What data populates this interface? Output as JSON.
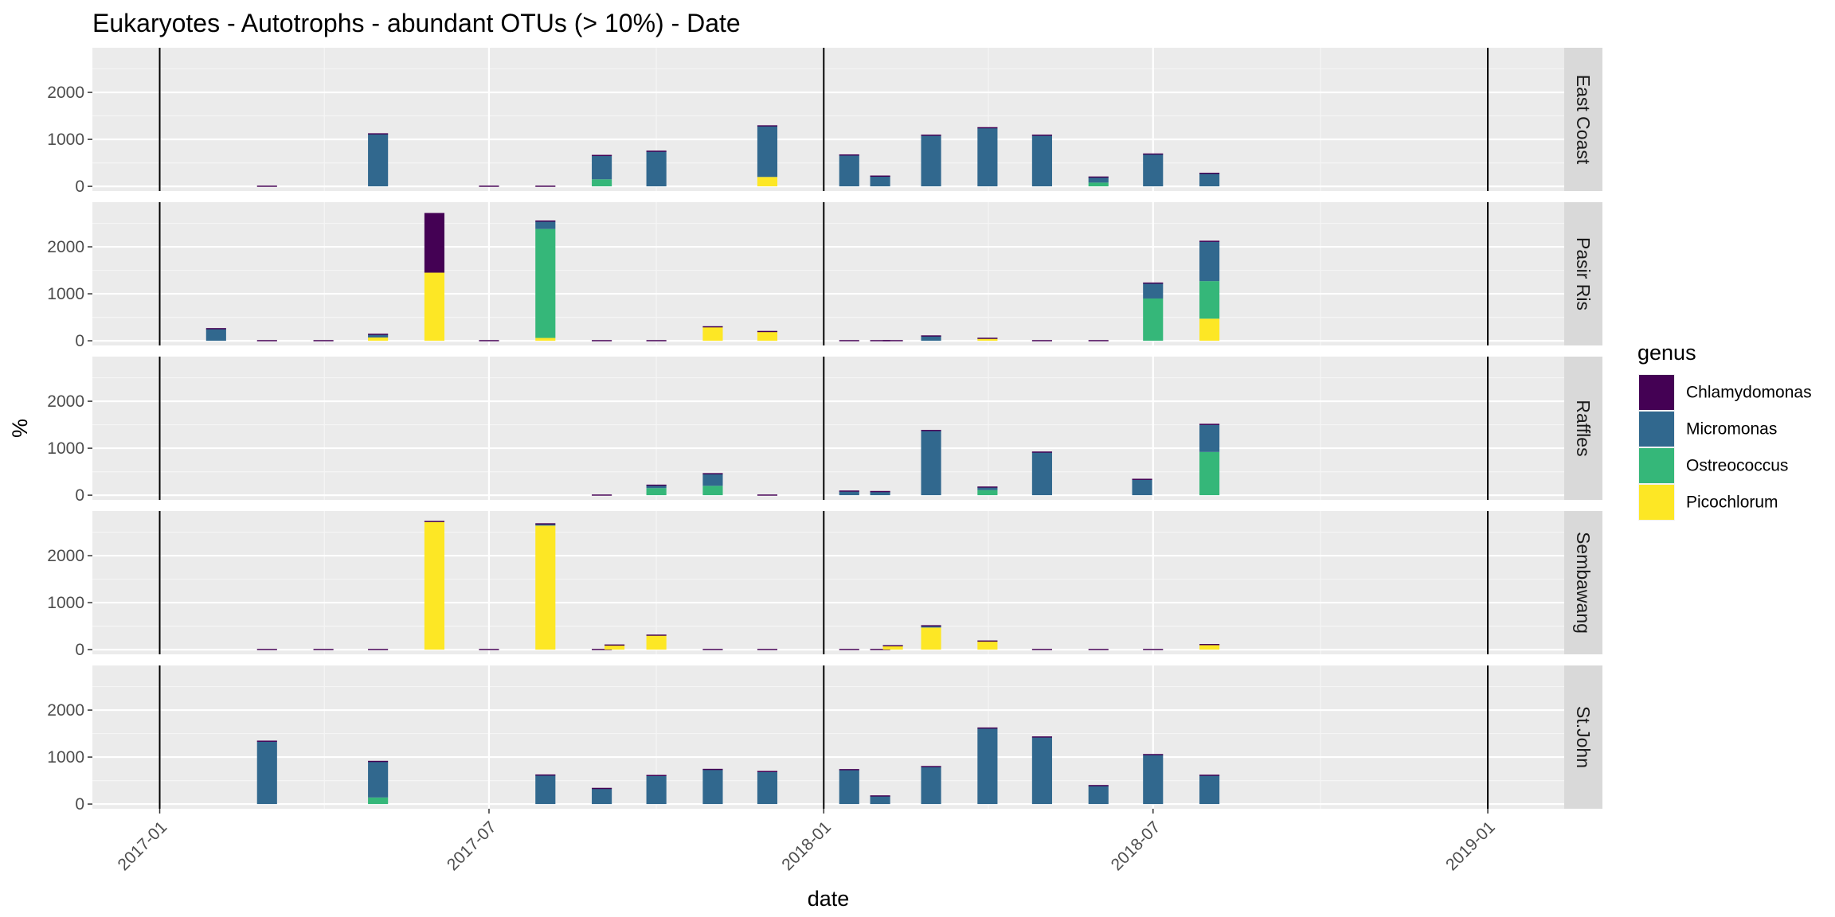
{
  "chart_data": {
    "type": "bar",
    "stacked": true,
    "title": "Eukaryotes - Autotrophs - abundant OTUs (> 10%) - Date",
    "xlabel": "date",
    "ylabel": "%",
    "ylim": [
      -100,
      2950
    ],
    "yticks": [
      0,
      1000,
      2000
    ],
    "xlim": [
      "2016-11-25",
      "2019-02-12"
    ],
    "xticks": [
      "2017-01",
      "2017-07",
      "2018-01",
      "2018-07",
      "2019-01"
    ],
    "vlines": [
      "2017-01-01",
      "2018-01-01",
      "2019-01-01"
    ],
    "grid": true,
    "legend": {
      "title": "genus",
      "position": "right",
      "items": [
        {
          "name": "Chlamydomonas",
          "color": "#440154"
        },
        {
          "name": "Micromonas",
          "color": "#31688E"
        },
        {
          "name": "Ostreococcus",
          "color": "#35B779"
        },
        {
          "name": "Picochlorum",
          "color": "#FDE725"
        }
      ]
    },
    "panels": [
      {
        "name": "East Coast",
        "bars": [
          {
            "date": "2017-03-01",
            "values": [
              15,
              0,
              0,
              0
            ]
          },
          {
            "date": "2017-05-01",
            "values": [
              20,
              1110,
              0,
              0
            ]
          },
          {
            "date": "2017-07-01",
            "values": [
              15,
              0,
              0,
              0
            ]
          },
          {
            "date": "2017-08-01",
            "values": [
              15,
              0,
              0,
              0
            ]
          },
          {
            "date": "2017-09-01",
            "values": [
              20,
              500,
              150,
              0
            ]
          },
          {
            "date": "2017-10-01",
            "values": [
              15,
              745,
              0,
              0
            ]
          },
          {
            "date": "2017-12-01",
            "values": [
              20,
              1080,
              0,
              200
            ]
          },
          {
            "date": "2018-01-15",
            "values": [
              20,
              660,
              0,
              0
            ]
          },
          {
            "date": "2018-02-01",
            "values": [
              15,
              215,
              0,
              0
            ]
          },
          {
            "date": "2018-03-01",
            "values": [
              20,
              1080,
              0,
              0
            ]
          },
          {
            "date": "2018-04-01",
            "values": [
              20,
              1240,
              0,
              0
            ]
          },
          {
            "date": "2018-05-01",
            "values": [
              20,
              1080,
              0,
              0
            ]
          },
          {
            "date": "2018-06-01",
            "values": [
              15,
              115,
              80,
              0
            ]
          },
          {
            "date": "2018-07-01",
            "values": [
              20,
              680,
              0,
              0
            ]
          },
          {
            "date": "2018-08-01",
            "values": [
              15,
              275,
              0,
              0
            ]
          }
        ]
      },
      {
        "name": "Pasir Ris",
        "bars": [
          {
            "date": "2017-02-01",
            "values": [
              15,
              255,
              0,
              0
            ]
          },
          {
            "date": "2017-03-01",
            "values": [
              15,
              0,
              0,
              0
            ]
          },
          {
            "date": "2017-04-01",
            "values": [
              15,
              0,
              0,
              0
            ]
          },
          {
            "date": "2017-05-01",
            "values": [
              20,
              60,
              0,
              70
            ]
          },
          {
            "date": "2017-06-01",
            "values": [
              1270,
              0,
              0,
              1450
            ]
          },
          {
            "date": "2017-07-01",
            "values": [
              15,
              0,
              0,
              0
            ]
          },
          {
            "date": "2017-08-01",
            "values": [
              20,
              160,
              2320,
              60
            ]
          },
          {
            "date": "2017-09-01",
            "values": [
              15,
              0,
              0,
              0
            ]
          },
          {
            "date": "2017-10-01",
            "values": [
              15,
              0,
              0,
              0
            ]
          },
          {
            "date": "2017-11-01",
            "values": [
              20,
              0,
              0,
              290
            ]
          },
          {
            "date": "2017-12-01",
            "values": [
              20,
              0,
              0,
              190
            ]
          },
          {
            "date": "2018-01-15",
            "values": [
              15,
              0,
              0,
              0
            ]
          },
          {
            "date": "2018-02-01",
            "values": [
              15,
              0,
              0,
              0
            ]
          },
          {
            "date": "2018-02-08",
            "values": [
              15,
              0,
              0,
              0
            ]
          },
          {
            "date": "2018-03-01",
            "values": [
              15,
              100,
              0,
              0
            ]
          },
          {
            "date": "2018-04-01",
            "values": [
              15,
              0,
              0,
              50
            ]
          },
          {
            "date": "2018-05-01",
            "values": [
              15,
              0,
              0,
              0
            ]
          },
          {
            "date": "2018-06-01",
            "values": [
              15,
              0,
              0,
              0
            ]
          },
          {
            "date": "2018-07-01",
            "values": [
              20,
              320,
              900,
              0
            ]
          },
          {
            "date": "2018-08-01",
            "values": [
              20,
              840,
              800,
              470
            ]
          }
        ]
      },
      {
        "name": "Raffles",
        "bars": [
          {
            "date": "2017-09-01",
            "values": [
              15,
              0,
              0,
              0
            ]
          },
          {
            "date": "2017-10-01",
            "values": [
              15,
              60,
              150,
              0
            ]
          },
          {
            "date": "2017-11-01",
            "values": [
              20,
              250,
              200,
              0
            ]
          },
          {
            "date": "2017-12-01",
            "values": [
              15,
              0,
              0,
              0
            ]
          },
          {
            "date": "2018-01-15",
            "values": [
              15,
              85,
              0,
              0
            ]
          },
          {
            "date": "2018-02-01",
            "values": [
              15,
              75,
              0,
              0
            ]
          },
          {
            "date": "2018-03-01",
            "values": [
              20,
              1370,
              0,
              0
            ]
          },
          {
            "date": "2018-04-01",
            "values": [
              15,
              60,
              110,
              0
            ]
          },
          {
            "date": "2018-05-01",
            "values": [
              15,
              915,
              0,
              0
            ]
          },
          {
            "date": "2018-06-25",
            "values": [
              15,
              335,
              0,
              0
            ]
          },
          {
            "date": "2018-08-01",
            "values": [
              20,
              580,
              920,
              0
            ]
          }
        ]
      },
      {
        "name": "Sembawang",
        "bars": [
          {
            "date": "2017-03-01",
            "values": [
              15,
              0,
              0,
              0
            ]
          },
          {
            "date": "2017-04-01",
            "values": [
              15,
              0,
              0,
              0
            ]
          },
          {
            "date": "2017-05-01",
            "values": [
              15,
              0,
              0,
              0
            ]
          },
          {
            "date": "2017-06-01",
            "values": [
              20,
              0,
              0,
              2720
            ]
          },
          {
            "date": "2017-07-01",
            "values": [
              15,
              0,
              0,
              0
            ]
          },
          {
            "date": "2017-08-01",
            "values": [
              20,
              30,
              0,
              2640
            ]
          },
          {
            "date": "2017-09-01",
            "values": [
              15,
              0,
              0,
              0
            ]
          },
          {
            "date": "2017-09-08",
            "values": [
              15,
              0,
              0,
              95
            ]
          },
          {
            "date": "2017-10-01",
            "values": [
              20,
              0,
              0,
              300
            ]
          },
          {
            "date": "2017-11-01",
            "values": [
              15,
              0,
              0,
              0
            ]
          },
          {
            "date": "2017-12-01",
            "values": [
              15,
              0,
              0,
              0
            ]
          },
          {
            "date": "2018-01-15",
            "values": [
              15,
              0,
              0,
              0
            ]
          },
          {
            "date": "2018-02-01",
            "values": [
              15,
              0,
              0,
              0
            ]
          },
          {
            "date": "2018-02-08",
            "values": [
              15,
              0,
              0,
              80
            ]
          },
          {
            "date": "2018-03-01",
            "values": [
              20,
              30,
              0,
              470
            ]
          },
          {
            "date": "2018-04-01",
            "values": [
              20,
              0,
              0,
              175
            ]
          },
          {
            "date": "2018-05-01",
            "values": [
              15,
              0,
              0,
              0
            ]
          },
          {
            "date": "2018-06-01",
            "values": [
              15,
              0,
              0,
              0
            ]
          },
          {
            "date": "2018-07-01",
            "values": [
              15,
              0,
              0,
              0
            ]
          },
          {
            "date": "2018-08-01",
            "values": [
              20,
              0,
              0,
              100
            ]
          }
        ]
      },
      {
        "name": "St.John",
        "bars": [
          {
            "date": "2017-03-01",
            "values": [
              20,
              1330,
              0,
              0
            ]
          },
          {
            "date": "2017-05-01",
            "values": [
              20,
              760,
              140,
              0
            ]
          },
          {
            "date": "2017-08-01",
            "values": [
              15,
              615,
              0,
              0
            ]
          },
          {
            "date": "2017-09-01",
            "values": [
              15,
              330,
              0,
              0
            ]
          },
          {
            "date": "2017-10-01",
            "values": [
              15,
              605,
              0,
              0
            ]
          },
          {
            "date": "2017-11-01",
            "values": [
              20,
              730,
              0,
              0
            ]
          },
          {
            "date": "2017-12-01",
            "values": [
              15,
              690,
              0,
              0
            ]
          },
          {
            "date": "2018-01-15",
            "values": [
              20,
              725,
              0,
              0
            ]
          },
          {
            "date": "2018-02-01",
            "values": [
              15,
              170,
              0,
              0
            ]
          },
          {
            "date": "2018-03-01",
            "values": [
              20,
              790,
              0,
              0
            ]
          },
          {
            "date": "2018-04-01",
            "values": [
              20,
              1610,
              0,
              0
            ]
          },
          {
            "date": "2018-05-01",
            "values": [
              20,
              1420,
              0,
              0
            ]
          },
          {
            "date": "2018-06-01",
            "values": [
              15,
              390,
              0,
              0
            ]
          },
          {
            "date": "2018-07-01",
            "values": [
              20,
              1045,
              0,
              0
            ]
          },
          {
            "date": "2018-08-01",
            "values": [
              15,
              610,
              0,
              0
            ]
          }
        ]
      }
    ]
  }
}
